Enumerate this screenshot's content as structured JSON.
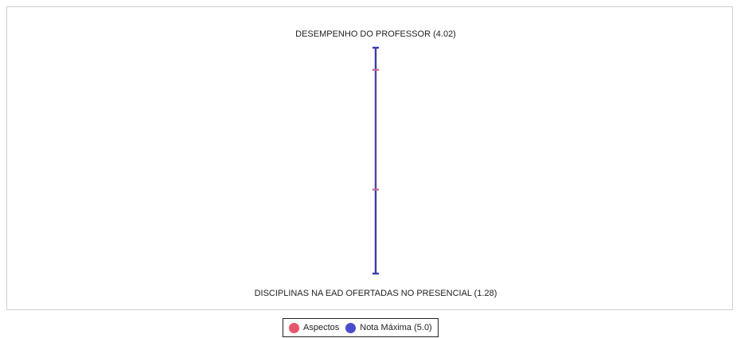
{
  "chart_data": {
    "type": "radar",
    "axes": [
      {
        "label": "DESEMPENHO DO PROFESSOR (4.02)",
        "value": 4.02
      },
      {
        "label": "DISCIPLINAS NA EAD OFERTADAS NO PRESENCIAL (1.28)",
        "value": 1.28
      }
    ],
    "series": [
      {
        "name": "Aspectos",
        "values": [
          4.02,
          1.28
        ],
        "color": "#e8566b"
      },
      {
        "name": "Nota Máxima (5.0)",
        "values": [
          5.0,
          5.0
        ],
        "color": "#4b4bcf"
      }
    ],
    "range": [
      0,
      5
    ],
    "grid": false,
    "legend_position": "bottom-center"
  },
  "colors": {
    "axis_line": "#3b3bb5",
    "aspectos_marker": "#c46a8f",
    "frame_border": "#cfcfcf"
  }
}
